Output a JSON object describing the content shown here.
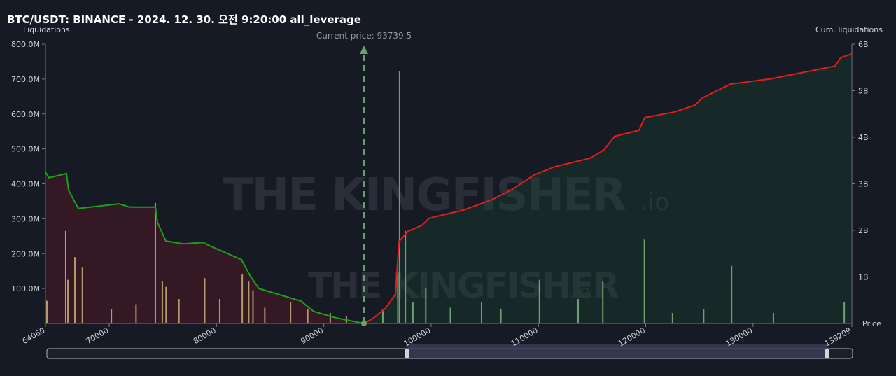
{
  "chart_data": {
    "type": "bar",
    "title": "BTC/USDT: BINANCE - 2024. 12. 30. 오전 9:20:00 all_leverage",
    "y_label": "Liquidations",
    "y2_label": "Cum. liquidations",
    "x_label": "Price",
    "watermark": "THE KINGFISHER",
    "watermark_suffix": ".io",
    "current_price": {
      "value": 93739.5,
      "label": "Current price: 93739.5"
    },
    "xlim": [
      64060,
      139209
    ],
    "xticks": [
      64060,
      70000,
      80000,
      90000,
      100000,
      110000,
      120000,
      130000,
      139209
    ],
    "ylim": [
      0,
      800
    ],
    "yticks": [
      {
        "value": 100,
        "label": "100.0M"
      },
      {
        "value": 200,
        "label": "200.0M"
      },
      {
        "value": 300,
        "label": "300.0M"
      },
      {
        "value": 400,
        "label": "400.0M"
      },
      {
        "value": 500,
        "label": "500.0M"
      },
      {
        "value": 600,
        "label": "600.0M"
      },
      {
        "value": 700,
        "label": "700.0M"
      },
      {
        "value": 800,
        "label": "800.0M"
      }
    ],
    "y2lim": [
      0,
      6
    ],
    "y2ticks": [
      {
        "value": 1,
        "label": "1B"
      },
      {
        "value": 2,
        "label": "2B"
      },
      {
        "value": 3,
        "label": "3B"
      },
      {
        "value": 4,
        "label": "4B"
      },
      {
        "value": 5,
        "label": "5B"
      },
      {
        "value": 6,
        "label": "6B"
      }
    ],
    "series": [
      {
        "color": "#c9b37a",
        "x": [
          64190,
          65950,
          66150,
          66800,
          67500,
          70200,
          72500,
          74300,
          74950,
          75300,
          76500,
          78900,
          80300,
          82400,
          83000,
          83400,
          84500,
          86900,
          88500,
          90600,
          92100
        ],
        "values": [
          65,
          265,
          125,
          190,
          160,
          40,
          55,
          345,
          120,
          105,
          70,
          130,
          70,
          140,
          120,
          95,
          45,
          60,
          40,
          30,
          20
        ]
      },
      {
        "color": "#7fb77f",
        "x": [
          95500,
          96900,
          97060,
          97600,
          98300,
          99500,
          101800,
          104700,
          106500,
          110100,
          113700,
          116000,
          119880,
          122500,
          125400,
          128000,
          131900,
          138500
        ],
        "values": [
          40,
          145,
          722,
          265,
          60,
          100,
          45,
          60,
          40,
          125,
          70,
          120,
          240,
          30,
          40,
          165,
          30,
          60
        ]
      },
      {
        "color": "#1f9d1f",
        "axis": "y2",
        "line": true,
        "fill": "rgba(110,25,35,0.35)",
        "x": [
          64060,
          64386,
          66017,
          66213,
          67126,
          70910,
          71888,
          74302,
          74497,
          75280,
          76911,
          78737,
          79259,
          82325,
          83173,
          83956,
          87870,
          89044,
          91131,
          93740
        ],
        "values": [
          3.25,
          3.13,
          3.22,
          2.86,
          2.47,
          2.57,
          2.5,
          2.5,
          2.17,
          1.77,
          1.71,
          1.74,
          1.68,
          1.37,
          1.01,
          0.75,
          0.48,
          0.26,
          0.12,
          0
        ]
      },
      {
        "color": "#e01e1e",
        "axis": "y2",
        "line": true,
        "fill": "rgba(25,70,45,0.35)",
        "x": [
          93740,
          94590,
          95764,
          96677,
          97003,
          97851,
          99156,
          99808,
          103070,
          105679,
          107636,
          109593,
          111550,
          114812,
          116116,
          117095,
          119378,
          119900,
          122640,
          124597,
          125249,
          127858,
          131772,
          137643,
          138165,
          139209
        ],
        "values": [
          0,
          0.11,
          0.33,
          0.63,
          1.76,
          1.98,
          2.11,
          2.26,
          2.44,
          2.66,
          2.89,
          3.19,
          3.37,
          3.55,
          3.73,
          4.02,
          4.15,
          4.42,
          4.54,
          4.69,
          4.84,
          5.14,
          5.26,
          5.53,
          5.71,
          5.79
        ]
      }
    ]
  }
}
